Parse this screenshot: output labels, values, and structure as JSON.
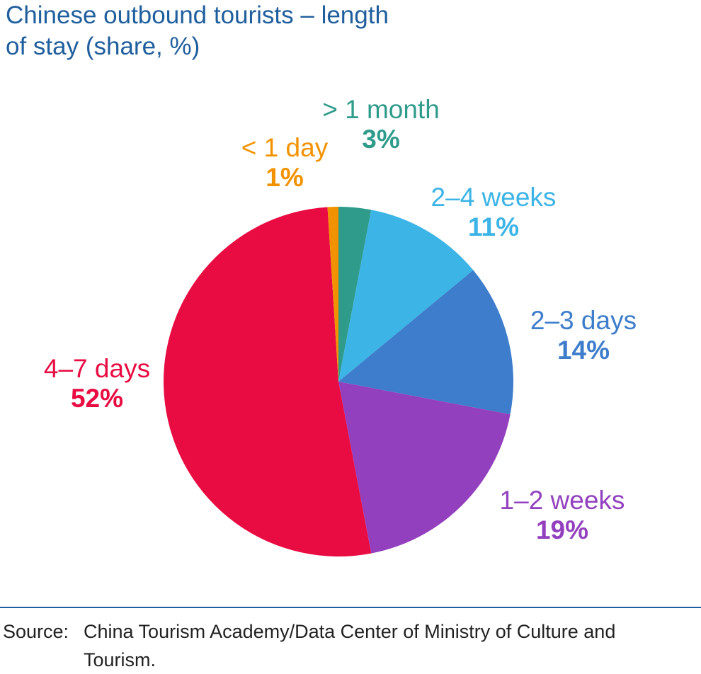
{
  "chart_data": {
    "type": "pie",
    "title": "Chinese outbound tourists – length of stay (share, %)",
    "slices": [
      {
        "label": "> 1 month",
        "value": 3,
        "value_label": "3%",
        "color": "#2e9b8b"
      },
      {
        "label": "2–4 weeks",
        "value": 11,
        "value_label": "11%",
        "color": "#3cb4e6"
      },
      {
        "label": "2–3 days",
        "value": 14,
        "value_label": "14%",
        "color": "#3d7dcb"
      },
      {
        "label": "1–2 weeks",
        "value": 19,
        "value_label": "19%",
        "color": "#9340bf"
      },
      {
        "label": "4–7 days",
        "value": 52,
        "value_label": "52%",
        "color": "#e80c42"
      },
      {
        "label": "< 1 day",
        "value": 1,
        "value_label": "1%",
        "color": "#f39200"
      }
    ]
  },
  "source": {
    "label": "Source:",
    "text": "China Tourism Academy/Data Center of Ministry of Culture and Tourism."
  }
}
